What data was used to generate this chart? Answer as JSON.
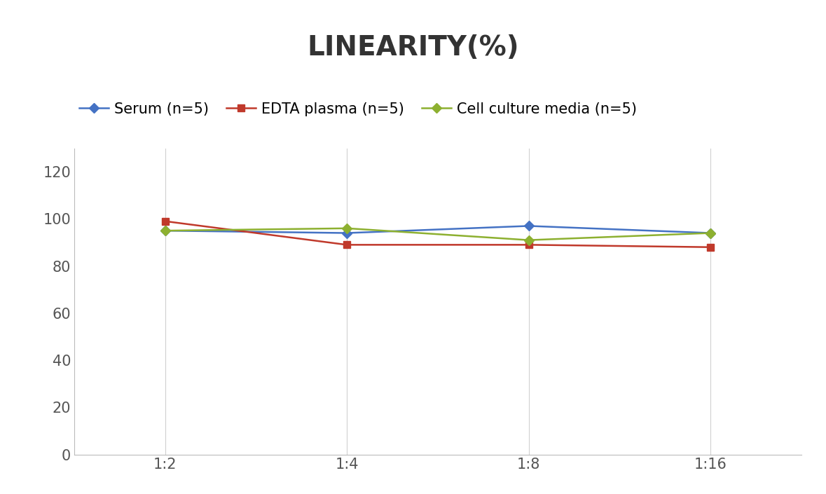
{
  "title": "LINEARITY(%)",
  "x_labels": [
    "1:2",
    "1:4",
    "1:8",
    "1:16"
  ],
  "series": [
    {
      "label": "Serum (n=5)",
      "values": [
        95,
        94,
        97,
        94
      ],
      "color": "#4472C4",
      "marker": "D",
      "marker_size": 7,
      "linewidth": 1.8
    },
    {
      "label": "EDTA plasma (n=5)",
      "values": [
        99,
        89,
        89,
        88
      ],
      "color": "#C0392B",
      "marker": "s",
      "marker_size": 7,
      "linewidth": 1.8
    },
    {
      "label": "Cell culture media (n=5)",
      "values": [
        95,
        96,
        91,
        94
      ],
      "color": "#8DB030",
      "marker": "D",
      "marker_size": 7,
      "linewidth": 1.8
    }
  ],
  "ylim": [
    0,
    130
  ],
  "yticks": [
    0,
    20,
    40,
    60,
    80,
    100,
    120
  ],
  "background_color": "#ffffff",
  "grid_color": "#d0d0d0",
  "title_fontsize": 28,
  "legend_fontsize": 15,
  "tick_fontsize": 15
}
